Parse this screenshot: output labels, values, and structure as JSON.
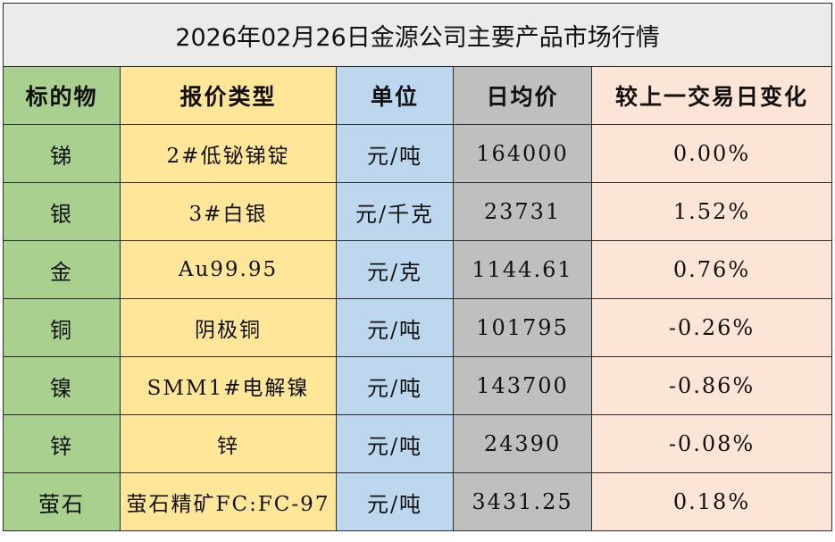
{
  "title": "2026年02月26日金源公司主要产品市场行情",
  "headers": [
    "标的物",
    "报价类型",
    "单位",
    "日均价",
    "较上一交易日变化"
  ],
  "rows": [
    {
      "item": "锑",
      "type": "2#低铋锑锭",
      "unit": "元/吨",
      "price": "164000",
      "change": "0.00%"
    },
    {
      "item": "银",
      "type": "3#白银",
      "unit": "元/千克",
      "price": "23731",
      "change": "1.52%"
    },
    {
      "item": "金",
      "type": "Au99.95",
      "unit": "元/克",
      "price": "1144.61",
      "change": "0.76%"
    },
    {
      "item": "铜",
      "type": "阴极铜",
      "unit": "元/吨",
      "price": "101795",
      "change": "-0.26%"
    },
    {
      "item": "镍",
      "type": "SMM1#电解镍",
      "unit": "元/吨",
      "price": "143700",
      "change": "-0.86%"
    },
    {
      "item": "锌",
      "type": "锌",
      "unit": "元/吨",
      "price": "24390",
      "change": "-0.08%"
    },
    {
      "item": "萤石",
      "type": "萤石精矿FC:FC-97",
      "unit": "元/吨",
      "price": "3431.25",
      "change": "0.18%"
    }
  ],
  "colors": {
    "item_col": "#a9d08e",
    "type_col": "#ffe699",
    "unit_col": "#bdd7ee",
    "price_col": "#bfbfbf",
    "change_col": "#fce4d6",
    "title_bg": "#ebebeb"
  }
}
